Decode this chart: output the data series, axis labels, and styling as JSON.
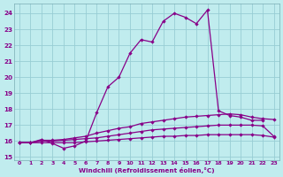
{
  "xlabel": "Windchill (Refroidissement éolien,°C)",
  "bg_color": "#c0ecee",
  "grid_color": "#98cdd4",
  "line_color": "#880088",
  "xlim": [
    -0.5,
    23.5
  ],
  "ylim": [
    14.8,
    24.6
  ],
  "xticks": [
    0,
    1,
    2,
    3,
    4,
    5,
    6,
    7,
    8,
    9,
    10,
    11,
    12,
    13,
    14,
    15,
    16,
    17,
    18,
    19,
    20,
    21,
    22,
    23
  ],
  "yticks": [
    15,
    16,
    17,
    18,
    19,
    20,
    21,
    22,
    23,
    24
  ],
  "series": [
    {
      "comment": "main upper curve - rises sharply from x~6, peaks at x~17, drops at x~18",
      "x": [
        0,
        1,
        2,
        3,
        4,
        5,
        6,
        7,
        8,
        9,
        10,
        11,
        12,
        13,
        14,
        15,
        16,
        17,
        18,
        19,
        20,
        21,
        22
      ],
      "y": [
        15.9,
        15.9,
        16.1,
        15.85,
        15.55,
        15.7,
        16.0,
        17.8,
        19.4,
        20.0,
        21.5,
        22.35,
        22.2,
        23.5,
        24.0,
        23.75,
        23.35,
        24.2,
        17.9,
        17.6,
        17.5,
        17.3,
        17.3
      ]
    },
    {
      "comment": "second curve - gently rising",
      "x": [
        0,
        1,
        2,
        3,
        4,
        5,
        6,
        7,
        8,
        9,
        10,
        11,
        12,
        13,
        14,
        15,
        16,
        17,
        18,
        19,
        20,
        21,
        22,
        23
      ],
      "y": [
        15.9,
        15.9,
        16.05,
        16.05,
        16.1,
        16.2,
        16.3,
        16.5,
        16.65,
        16.8,
        16.9,
        17.1,
        17.2,
        17.3,
        17.4,
        17.5,
        17.55,
        17.6,
        17.65,
        17.7,
        17.65,
        17.5,
        17.4,
        17.35
      ]
    },
    {
      "comment": "third curve - lower gentle rise",
      "x": [
        0,
        1,
        2,
        3,
        4,
        5,
        6,
        7,
        8,
        9,
        10,
        11,
        12,
        13,
        14,
        15,
        16,
        17,
        18,
        19,
        20,
        21,
        22,
        23
      ],
      "y": [
        15.9,
        15.9,
        16.0,
        16.0,
        16.05,
        16.1,
        16.15,
        16.2,
        16.3,
        16.4,
        16.5,
        16.6,
        16.7,
        16.75,
        16.8,
        16.85,
        16.9,
        16.95,
        17.0,
        17.0,
        17.0,
        17.0,
        16.95,
        16.3
      ]
    },
    {
      "comment": "bottom flat curve",
      "x": [
        0,
        1,
        2,
        3,
        4,
        5,
        6,
        7,
        8,
        9,
        10,
        11,
        12,
        13,
        14,
        15,
        16,
        17,
        18,
        19,
        20,
        21,
        22,
        23
      ],
      "y": [
        15.9,
        15.9,
        15.9,
        15.9,
        15.9,
        15.9,
        15.95,
        16.0,
        16.05,
        16.1,
        16.15,
        16.2,
        16.25,
        16.3,
        16.3,
        16.35,
        16.35,
        16.4,
        16.4,
        16.4,
        16.4,
        16.4,
        16.35,
        16.25
      ]
    }
  ]
}
